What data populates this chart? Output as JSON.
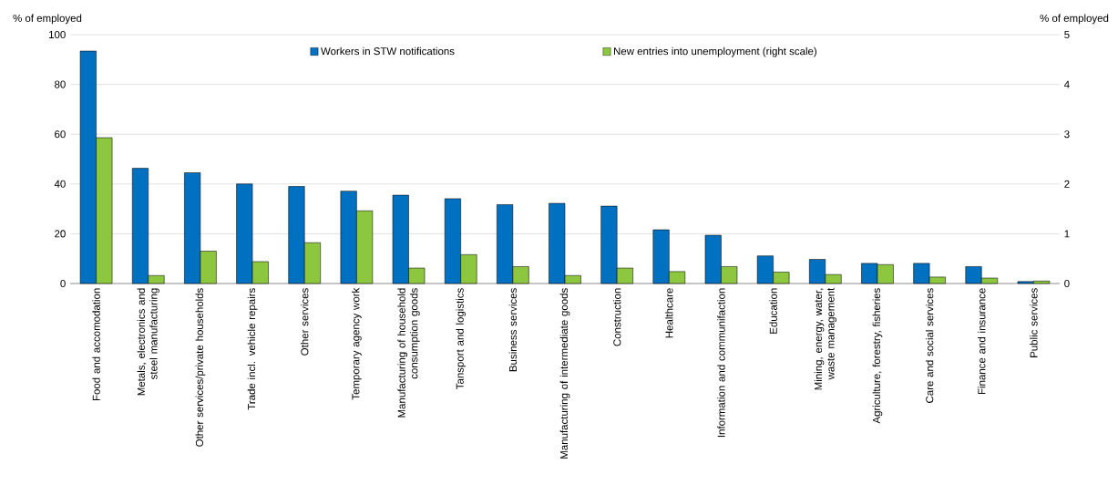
{
  "chart_data": {
    "type": "bar",
    "ylabel": "% of employed",
    "y2label": "% of employed",
    "categories": [
      "Food and accomodation",
      "Metals, electronics and steel manufacturing",
      "Other services/private households",
      "Trade incl. vehicle repairs",
      "Other services",
      "Temporary agency work",
      "Manufacturing of household consumption goods",
      "Tansport and logistics",
      "Business services",
      "Manufacturing of intermediate goods",
      "Construction",
      "Healthcare",
      "Information and communifaction",
      "Education",
      "Mining, energy, water, waste management",
      "Agriculture, forestry, fisheries",
      "Care and social services",
      "Finance and insurance",
      "Public services"
    ],
    "series": [
      {
        "name": "Workers in STW notifications",
        "color": "#0070c0",
        "values": [
          93.4,
          46.3,
          44.5,
          40,
          39,
          37.1,
          35.5,
          34.1,
          31.7,
          32.2,
          31.1,
          21.6,
          19.4,
          11.1,
          9.7,
          8.1,
          8.1,
          6.8,
          0.8
        ]
      },
      {
        "name": "New entries into unemployment (right scale)",
        "color": "#8dc63f",
        "axis": "y2",
        "values": [
          2.93,
          0.16,
          0.65,
          0.44,
          0.82,
          1.46,
          0.31,
          0.58,
          0.34,
          0.16,
          0.31,
          0.24,
          0.34,
          0.23,
          0.18,
          0.38,
          0.13,
          0.11,
          0.05
        ]
      }
    ],
    "ylim": [
      0,
      100
    ],
    "yticks": [
      0,
      20,
      40,
      60,
      80,
      100
    ],
    "y2lim": [
      0,
      5
    ],
    "y2ticks": [
      0,
      1,
      2,
      3,
      4,
      5
    ],
    "grid": "y",
    "legend": "top"
  }
}
